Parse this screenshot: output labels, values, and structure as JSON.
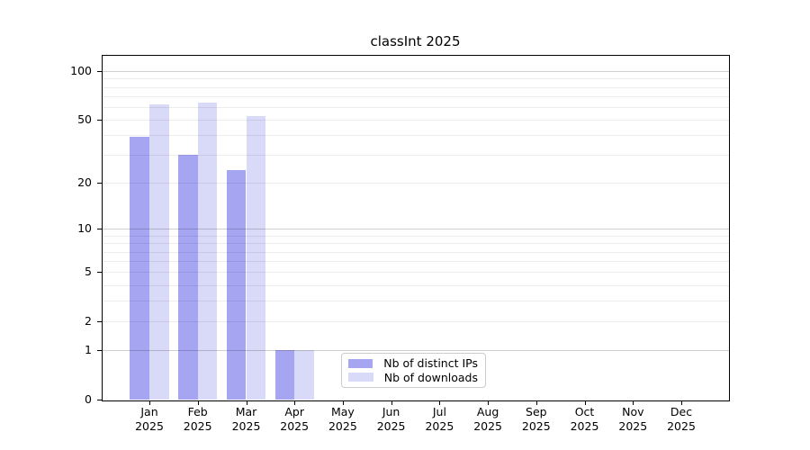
{
  "title": "classInt 2025",
  "chart_data": {
    "type": "bar",
    "title": "classInt 2025",
    "categories": [
      "Jan",
      "Feb",
      "Mar",
      "Apr",
      "May",
      "Jun",
      "Jul",
      "Aug",
      "Sep",
      "Oct",
      "Nov",
      "Dec"
    ],
    "category_year": "2025",
    "series": [
      {
        "name": "Nb of distinct IPs",
        "color": "#a5a5f2",
        "values": [
          39,
          30,
          24,
          1,
          0,
          0,
          0,
          0,
          0,
          0,
          0,
          0
        ]
      },
      {
        "name": "Nb of downloads",
        "color": "#d9d9f8",
        "values": [
          62,
          64,
          53,
          1,
          0,
          0,
          0,
          0,
          0,
          0,
          0,
          0
        ]
      }
    ],
    "y_axis": {
      "scale": "log10(1+y)",
      "tick_labels": [
        "0",
        "1",
        "2",
        "5",
        "10",
        "20",
        "50",
        "100"
      ],
      "tick_values": [
        0,
        1,
        2,
        5,
        10,
        20,
        50,
        100
      ],
      "major_grid_values": [
        1,
        10,
        100
      ],
      "minor_grid_values": [
        2,
        3,
        4,
        5,
        6,
        7,
        8,
        9,
        20,
        30,
        40,
        50,
        60,
        70,
        80,
        90
      ],
      "ymin": 0,
      "ymax": 125
    },
    "legend": {
      "position": "lower center"
    },
    "grid": true
  },
  "colors": {
    "spine": "#000000",
    "text": "#000000",
    "background": "#ffffff",
    "major_grid": "rgba(0,0,0,0.19)",
    "minor_grid": "rgba(0,0,0,0.075)",
    "legend_border": "#cccccc"
  }
}
